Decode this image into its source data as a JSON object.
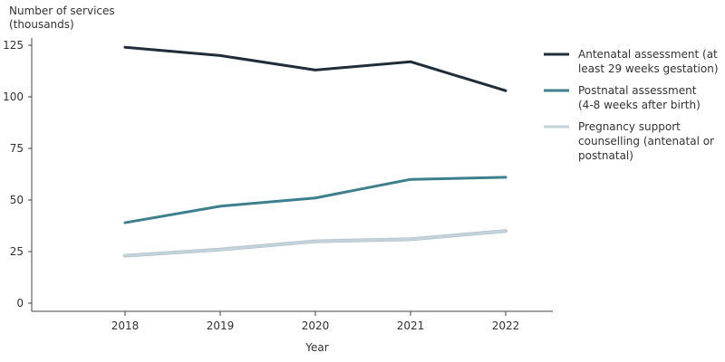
{
  "chart_data": {
    "type": "line",
    "ylabel_lines": [
      "Number of services",
      "(thousands)"
    ],
    "xlabel": "Year",
    "categories": [
      "2018",
      "2019",
      "2020",
      "2021",
      "2022"
    ],
    "ylim": [
      0,
      125
    ],
    "yticks": [
      0,
      25,
      50,
      75,
      100,
      125
    ],
    "grid": false,
    "legend_position": "right",
    "series": [
      {
        "name": "Antenatal assessment (at least 29 weeks gestation)",
        "name_lines": [
          "Antenatal assessment (at",
          "least 29 weeks gestation)"
        ],
        "color": "#1f2d3a",
        "values": [
          124,
          120,
          113,
          117,
          103
        ]
      },
      {
        "name": "Postnatal assessment (4-8 weeks after birth)",
        "name_lines": [
          "Postnatal assessment",
          "(4-8 weeks after birth)"
        ],
        "color": "#3d7f8c",
        "values": [
          39,
          47,
          51,
          60,
          61
        ]
      },
      {
        "name": "Pregnancy support counselling (antenatal or postnatal)",
        "name_lines": [
          "Pregnancy support",
          "counselling (antenatal or",
          "postnatal)"
        ],
        "color": "#c3d3dc",
        "values": [
          23,
          26,
          30,
          31,
          35
        ]
      }
    ]
  }
}
